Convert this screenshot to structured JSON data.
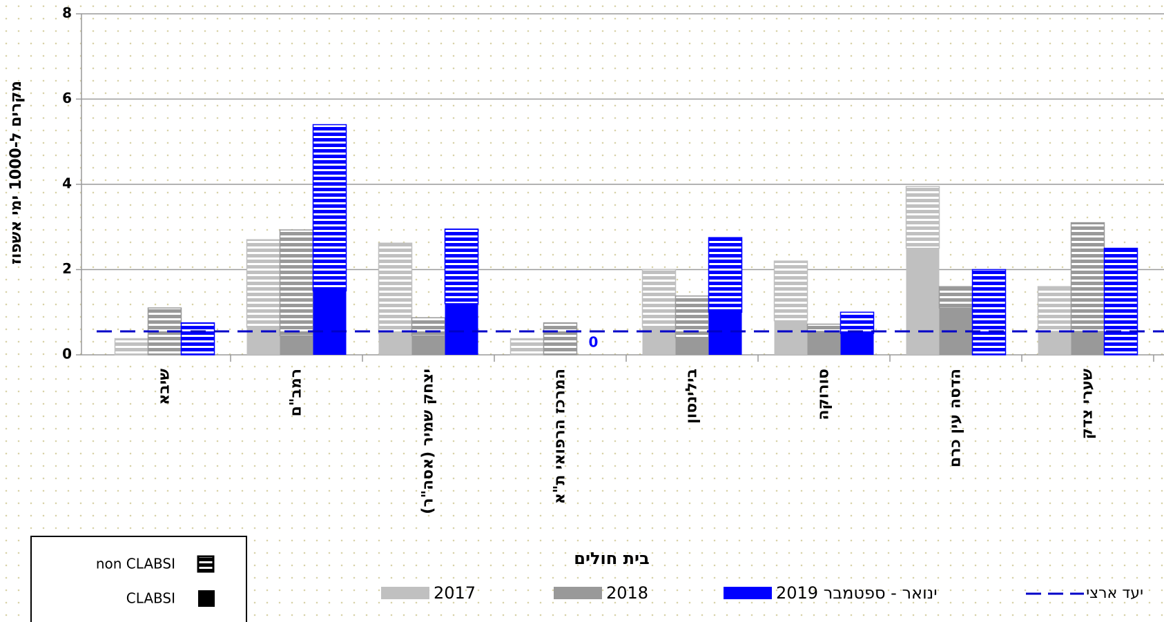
{
  "chart_data": {
    "type": "bar",
    "y_label": "מקרים ל-1000 ימי אשפוז",
    "x_label": "בית חולים",
    "categories": [
      "שיבא",
      "רמב\"ם",
      "יצחק שמיר (אסה\"ר)",
      "המרכז הרפואי ת\"א",
      "בילינסון",
      "סורוקה",
      "הדסה עין כרם",
      "שערי צדק"
    ],
    "components": [
      {
        "name": "non CLABSI"
      },
      {
        "name": "CLABSI"
      }
    ],
    "series": [
      {
        "name": "2017",
        "color": "#c0c0c0",
        "clabsi": [
          0,
          0.65,
          0.5,
          0,
          0.65,
          0.8,
          2.5,
          0.55
        ],
        "non_clabsi": [
          0.38,
          2.05,
          2.12,
          0.38,
          1.35,
          1.4,
          1.45,
          1.05
        ]
      },
      {
        "name": "2018",
        "color": "#999999",
        "clabsi": [
          0,
          0.45,
          0.45,
          0,
          0.4,
          0.55,
          1.1,
          0.55
        ],
        "non_clabsi": [
          1.1,
          2.48,
          0.42,
          0.75,
          0.98,
          0.17,
          0.5,
          2.55
        ]
      },
      {
        "name": "ינואר - ספטמבר 2019",
        "color": "#0000ff",
        "clabsi": [
          0,
          1.5,
          1.2,
          0,
          1.0,
          0.5,
          0,
          0
        ],
        "non_clabsi": [
          0.75,
          3.9,
          1.75,
          0,
          1.75,
          0.5,
          2.0,
          2.5
        ]
      }
    ],
    "target": {
      "name": "יעד ארצי",
      "value": 0.55,
      "color": "#0000c8"
    },
    "ylim": [
      0,
      8
    ],
    "yticks": [
      0,
      2,
      4,
      6,
      8
    ],
    "grid": true
  }
}
